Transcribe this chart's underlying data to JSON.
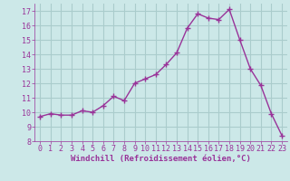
{
  "x": [
    0,
    1,
    2,
    3,
    4,
    5,
    6,
    7,
    8,
    9,
    10,
    11,
    12,
    13,
    14,
    15,
    16,
    17,
    18,
    19,
    20,
    21,
    22,
    23
  ],
  "y": [
    9.7,
    9.9,
    9.8,
    9.8,
    10.1,
    10.0,
    10.45,
    11.1,
    10.8,
    12.0,
    12.3,
    12.6,
    13.3,
    14.1,
    15.8,
    16.8,
    16.5,
    16.4,
    17.1,
    15.0,
    13.0,
    11.85,
    9.9,
    8.4
  ],
  "line_color": "#993399",
  "marker": "+",
  "marker_size": 4,
  "bg_color": "#cce8e8",
  "grid_color": "#aacccc",
  "xlabel": "Windchill (Refroidissement éolien,°C)",
  "xlim": [
    -0.5,
    23.5
  ],
  "ylim": [
    8,
    17.5
  ],
  "yticks": [
    8,
    9,
    10,
    11,
    12,
    13,
    14,
    15,
    16,
    17
  ],
  "xticks": [
    0,
    1,
    2,
    3,
    4,
    5,
    6,
    7,
    8,
    9,
    10,
    11,
    12,
    13,
    14,
    15,
    16,
    17,
    18,
    19,
    20,
    21,
    22,
    23
  ],
  "tick_color": "#993399",
  "label_color": "#993399",
  "font_size": 6.0,
  "xlabel_font_size": 6.5,
  "line_width": 1.0
}
